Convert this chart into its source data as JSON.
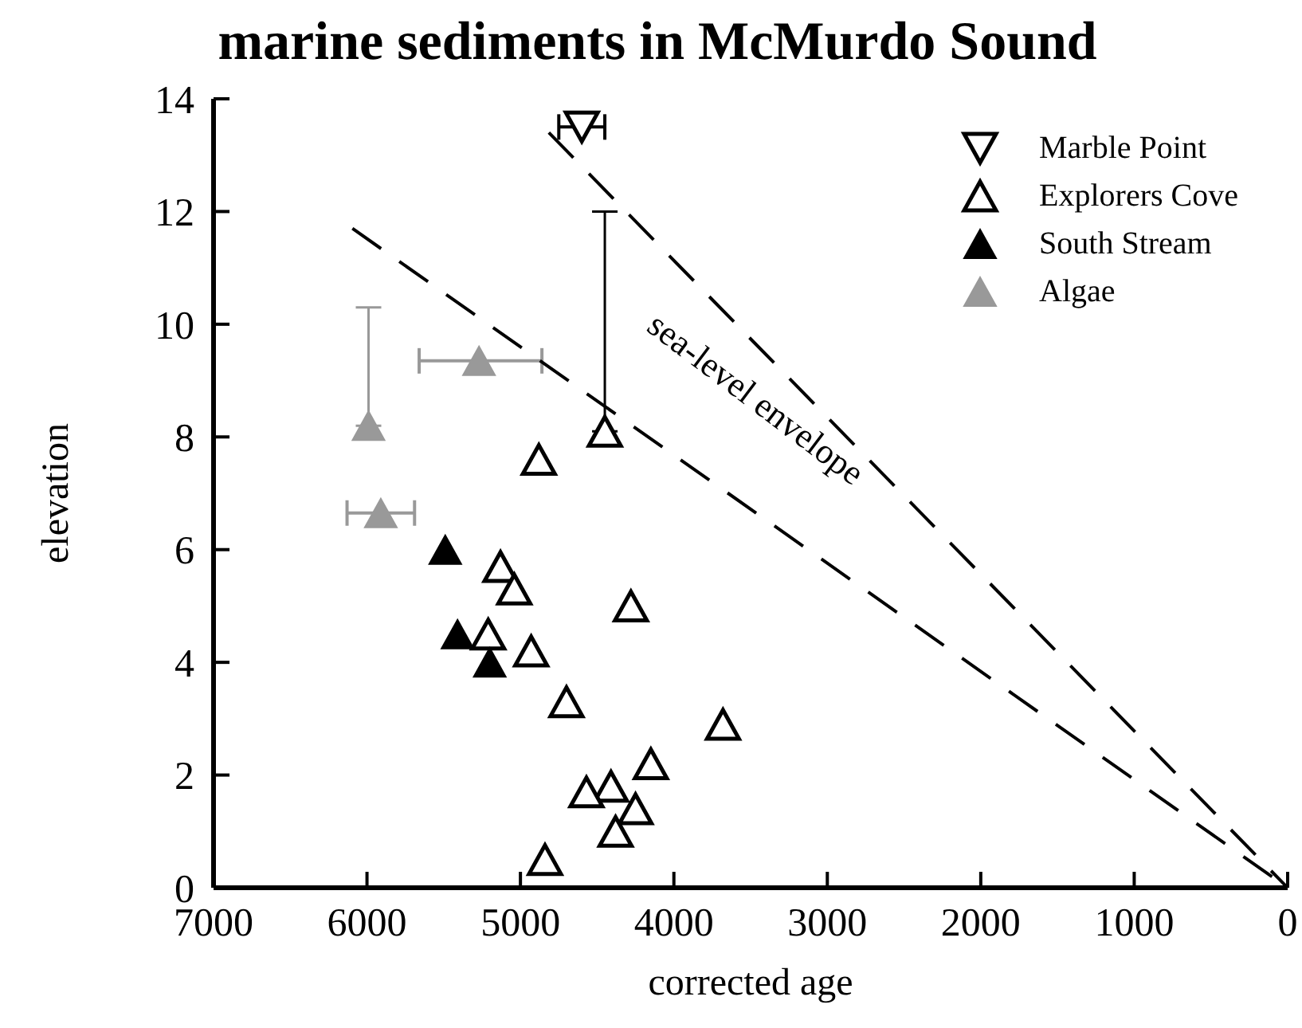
{
  "chart_data": {
    "type": "scatter",
    "title": "marine sediments in McMurdo Sound",
    "xlabel": "corrected age",
    "ylabel": "elevation",
    "xlim": [
      7000,
      0
    ],
    "xticks": [
      7000,
      6000,
      5000,
      4000,
      3000,
      2000,
      1000,
      0
    ],
    "ylim": [
      0,
      14
    ],
    "yticks": [
      0,
      2,
      4,
      6,
      8,
      10,
      12,
      14
    ],
    "legend": "top right",
    "annotations": [
      "sea-level envelope"
    ],
    "series": [
      {
        "name": "Marble Point",
        "color": "#000000",
        "marker": "triangle-down-open",
        "x": [
          4600
        ],
        "values": [
          13.5
        ],
        "xerrors": [
          150
        ]
      },
      {
        "name": "Explorers Cove",
        "color": "#000000",
        "marker": "triangle-open",
        "x": [
          4450,
          4880,
          5130,
          5040,
          4280,
          5210,
          4930,
          4700,
          3680,
          4150,
          4410,
          4570,
          4250,
          4380,
          4840
        ],
        "values": [
          8.1,
          7.6,
          5.7,
          5.3,
          5.0,
          4.5,
          4.2,
          3.3,
          2.9,
          2.2,
          1.8,
          1.7,
          1.4,
          1.0,
          0.5
        ],
        "errors": [
          [
            8.1,
            12
          ],
          null,
          null,
          null,
          null,
          null,
          null,
          null,
          null,
          null,
          null,
          null,
          null,
          null,
          null
        ]
      },
      {
        "name": "South Stream",
        "color": "#000000",
        "marker": "triangle",
        "x": [
          5490,
          5410,
          5200
        ],
        "values": [
          6.0,
          4.5,
          4.0
        ]
      },
      {
        "name": "Algae",
        "color": "#999999",
        "marker": "triangle",
        "x": [
          5990,
          5270,
          5910
        ],
        "values": [
          8.2,
          9.35,
          6.65
        ],
        "errors": [
          [
            8.2,
            10.3
          ],
          null,
          null
        ],
        "xerrors": [
          null,
          [
            4860,
            5660
          ],
          [
            5690,
            6130
          ]
        ]
      },
      {
        "type": "line",
        "color": "#000000",
        "line_style": "dashed",
        "marker": "none",
        "x": [
          4815,
          0
        ],
        "values": [
          13.4,
          0
        ]
      },
      {
        "type": "line",
        "color": "#000000",
        "line_style": "dashed",
        "marker": "none",
        "x": [
          6095,
          0
        ],
        "values": [
          11.7,
          0
        ]
      }
    ]
  }
}
